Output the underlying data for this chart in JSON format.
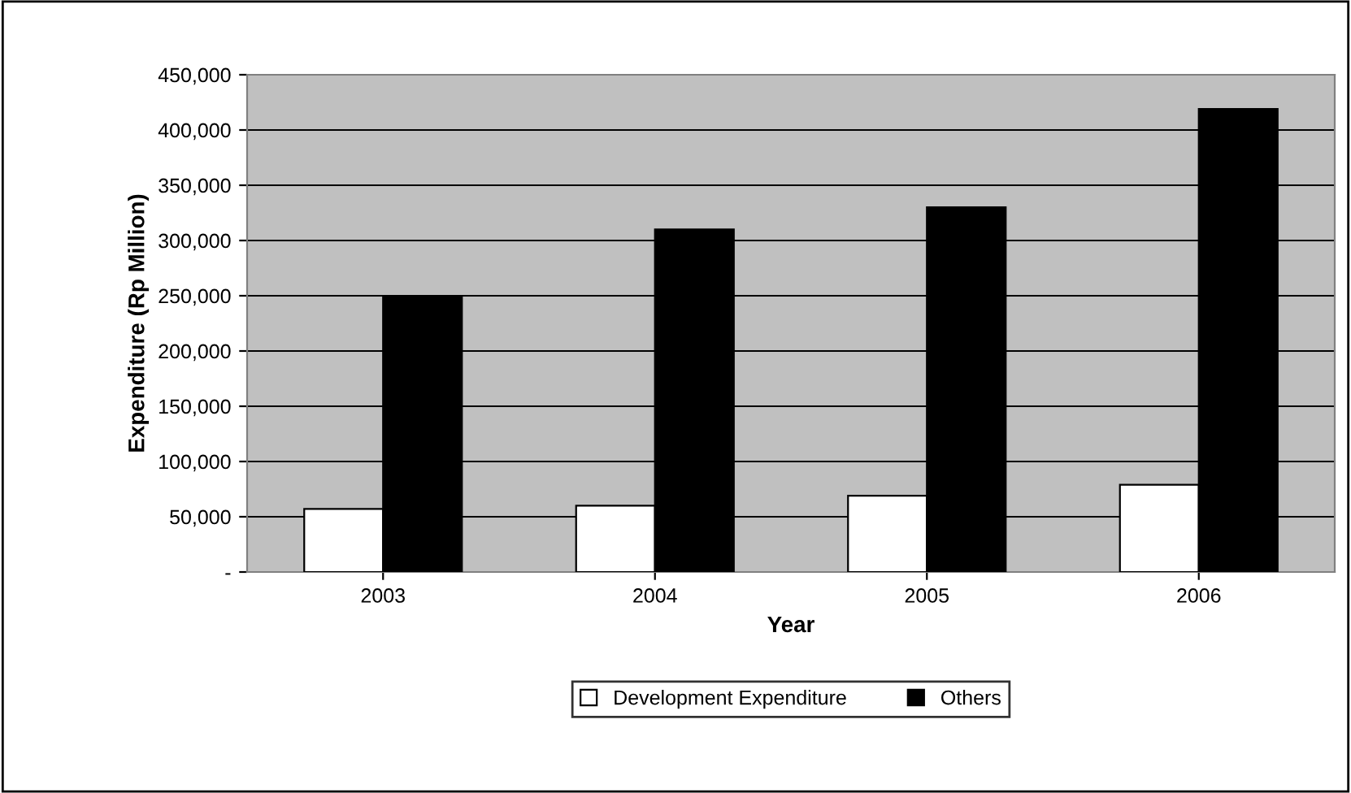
{
  "chart_data": {
    "type": "bar",
    "xlabel": "Year",
    "ylabel": "Expenditure (Rp Million)",
    "categories": [
      "2003",
      "2004",
      "2005",
      "2006"
    ],
    "series": [
      {
        "name": "Development Expenditure",
        "color": "#ffffff",
        "values": [
          57000,
          60000,
          69000,
          79000
        ]
      },
      {
        "name": "Others",
        "color": "#000000",
        "values": [
          249000,
          310000,
          330000,
          419000
        ]
      }
    ],
    "ylim": [
      0,
      450000
    ],
    "yticks": [
      {
        "value": 0,
        "label": "-"
      },
      {
        "value": 50000,
        "label": "50,000"
      },
      {
        "value": 100000,
        "label": "100,000"
      },
      {
        "value": 150000,
        "label": "150,000"
      },
      {
        "value": 200000,
        "label": "200,000"
      },
      {
        "value": 250000,
        "label": "250,000"
      },
      {
        "value": 300000,
        "label": "300,000"
      },
      {
        "value": 350000,
        "label": "350,000"
      },
      {
        "value": 400000,
        "label": "400,000"
      },
      {
        "value": 450000,
        "label": "450,000"
      }
    ],
    "grid": "y",
    "legend": "bottom"
  }
}
